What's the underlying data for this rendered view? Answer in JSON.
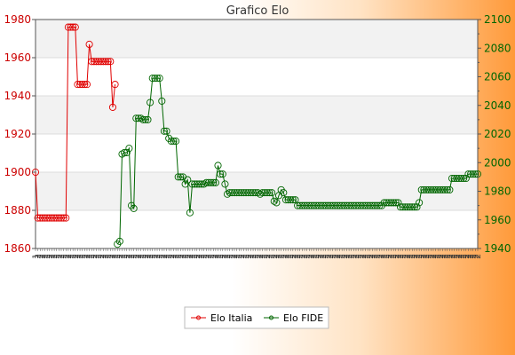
{
  "chart_data": {
    "type": "line",
    "title": "Grafico Elo",
    "colors": {
      "italia": "#e00000",
      "fide": "#006600",
      "left_axis": "#cc0000",
      "right_axis": "#006600",
      "band": "#f2f2f2",
      "grid": "#dcdcdc"
    },
    "y_left": {
      "label": "",
      "lim": [
        1860,
        1980
      ],
      "ticks": [
        1860,
        1880,
        1900,
        1920,
        1940,
        1960,
        1980
      ]
    },
    "y_right": {
      "label": "",
      "lim": [
        1940,
        2100
      ],
      "ticks": [
        1940,
        1960,
        1980,
        2000,
        2020,
        2040,
        2060,
        2080,
        2100
      ]
    },
    "grid": true,
    "legend_position": "bottom",
    "x_tick_labels": [
      "1",
      "2",
      "2",
      "2",
      "2",
      "2",
      "2",
      "2",
      "2",
      "2",
      "2",
      "2",
      "2",
      "2",
      "2",
      "2",
      "2",
      "2",
      "2",
      "2",
      "2",
      "2",
      "2",
      "2",
      "2",
      "2",
      "2",
      "2",
      "2",
      "2",
      "2",
      "2",
      "2",
      "2",
      "2",
      "2",
      "2",
      "2",
      "2",
      "2",
      "2",
      "2",
      "2",
      "2",
      "2",
      "2",
      "2",
      "2",
      "2",
      "2",
      "2",
      "2",
      "2",
      "2",
      "2",
      "2",
      "2",
      "2",
      "2",
      "2",
      "2",
      "2",
      "2",
      "2",
      "2",
      "2",
      "2",
      "2",
      "2",
      "2",
      "2",
      "2",
      "2",
      "2",
      "2",
      "2",
      "2",
      "2",
      "2",
      "2",
      "2",
      "2",
      "2",
      "2",
      "2",
      "2",
      "2",
      "2",
      "2",
      "2",
      "2",
      "2",
      "2",
      "2",
      "2",
      "2",
      "2",
      "2",
      "2",
      "2",
      "2",
      "2",
      "2",
      "2",
      "2",
      "2",
      "2",
      "2",
      "2",
      "2",
      "2",
      "2",
      "2",
      "2",
      "2",
      "2",
      "2",
      "2",
      "2",
      "2",
      "2",
      "2",
      "2",
      "2",
      "2",
      "2",
      "2",
      "2",
      "2",
      "2",
      "2",
      "2",
      "2",
      "2",
      "2",
      "2",
      "2",
      "2",
      "2",
      "2",
      "2",
      "2",
      "2",
      "2",
      "2",
      "2",
      "2",
      "2",
      "2",
      "2",
      "2",
      "2",
      "2",
      "2",
      "2",
      "2",
      "2",
      "2",
      "2",
      "2",
      "2",
      "2",
      "2",
      "2",
      "2",
      "2",
      "2",
      "2",
      "2",
      "2",
      "2",
      "2",
      "2",
      "2",
      "2",
      "2",
      "2",
      "2",
      "2",
      "2",
      "2",
      "2",
      "2",
      "2",
      "2",
      "2",
      "2",
      "2",
      "2",
      "2"
    ],
    "series": [
      {
        "name": "Elo Italia",
        "axis": "left",
        "points": [
          [
            0,
            1900
          ],
          [
            1,
            1876
          ],
          [
            2,
            1876
          ],
          [
            3,
            1876
          ],
          [
            4,
            1876
          ],
          [
            5,
            1876
          ],
          [
            6,
            1876
          ],
          [
            7,
            1876
          ],
          [
            8,
            1876
          ],
          [
            9,
            1876
          ],
          [
            10,
            1876
          ],
          [
            11,
            1876
          ],
          [
            12,
            1876
          ],
          [
            13,
            1876
          ],
          [
            14,
            1976
          ],
          [
            15,
            1976
          ],
          [
            16,
            1976
          ],
          [
            17,
            1976
          ],
          [
            18,
            1946
          ],
          [
            19,
            1946
          ],
          [
            20,
            1946
          ],
          [
            21,
            1946
          ],
          [
            22,
            1946
          ],
          [
            23,
            1967
          ],
          [
            24,
            1958
          ],
          [
            25,
            1958
          ],
          [
            26,
            1958
          ],
          [
            27,
            1958
          ],
          [
            28,
            1958
          ],
          [
            29,
            1958
          ],
          [
            30,
            1958
          ],
          [
            31,
            1958
          ],
          [
            32,
            1958
          ],
          [
            33,
            1934
          ],
          [
            34,
            1946
          ]
        ]
      },
      {
        "name": "Elo FIDE",
        "axis": "right",
        "points": [
          [
            35,
            1943
          ],
          [
            36,
            1945
          ],
          [
            37,
            2006
          ],
          [
            38,
            2007
          ],
          [
            39,
            2007
          ],
          [
            40,
            2010
          ],
          [
            41,
            1970
          ],
          [
            42,
            1968
          ],
          [
            43,
            2031
          ],
          [
            44,
            2031
          ],
          [
            45,
            2031
          ],
          [
            46,
            2030
          ],
          [
            47,
            2030
          ],
          [
            48,
            2030
          ],
          [
            49,
            2042
          ],
          [
            50,
            2059
          ],
          [
            51,
            2059
          ],
          [
            52,
            2059
          ],
          [
            53,
            2059
          ],
          [
            54,
            2043
          ],
          [
            55,
            2022
          ],
          [
            56,
            2022
          ],
          [
            57,
            2017
          ],
          [
            58,
            2015
          ],
          [
            59,
            2015
          ],
          [
            60,
            2015
          ],
          [
            61,
            1990
          ],
          [
            62,
            1990
          ],
          [
            63,
            1990
          ],
          [
            64,
            1985
          ],
          [
            65,
            1988
          ],
          [
            66,
            1965
          ],
          [
            67,
            1985
          ],
          [
            68,
            1985
          ],
          [
            69,
            1985
          ],
          [
            70,
            1985
          ],
          [
            71,
            1985
          ],
          [
            72,
            1985
          ],
          [
            73,
            1986
          ],
          [
            74,
            1986
          ],
          [
            75,
            1986
          ],
          [
            76,
            1986
          ],
          [
            77,
            1986
          ],
          [
            78,
            1998
          ],
          [
            79,
            1992
          ],
          [
            80,
            1992
          ],
          [
            81,
            1985
          ],
          [
            82,
            1978
          ],
          [
            83,
            1979
          ],
          [
            84,
            1979
          ],
          [
            85,
            1979
          ],
          [
            86,
            1979
          ],
          [
            87,
            1979
          ],
          [
            88,
            1979
          ],
          [
            89,
            1979
          ],
          [
            90,
            1979
          ],
          [
            91,
            1979
          ],
          [
            92,
            1979
          ],
          [
            93,
            1979
          ],
          [
            94,
            1979
          ],
          [
            95,
            1979
          ],
          [
            96,
            1978
          ],
          [
            97,
            1979
          ],
          [
            98,
            1979
          ],
          [
            99,
            1979
          ],
          [
            100,
            1979
          ],
          [
            101,
            1979
          ],
          [
            102,
            1973
          ],
          [
            103,
            1972
          ],
          [
            104,
            1977
          ],
          [
            105,
            1981
          ],
          [
            106,
            1979
          ],
          [
            107,
            1974
          ],
          [
            108,
            1974
          ],
          [
            109,
            1974
          ],
          [
            110,
            1974
          ],
          [
            111,
            1974
          ],
          [
            112,
            1970
          ],
          [
            113,
            1970
          ],
          [
            114,
            1970
          ],
          [
            115,
            1970
          ],
          [
            116,
            1970
          ],
          [
            117,
            1970
          ],
          [
            118,
            1970
          ],
          [
            119,
            1970
          ],
          [
            120,
            1970
          ],
          [
            121,
            1970
          ],
          [
            122,
            1970
          ],
          [
            123,
            1970
          ],
          [
            124,
            1970
          ],
          [
            125,
            1970
          ],
          [
            126,
            1970
          ],
          [
            127,
            1970
          ],
          [
            128,
            1970
          ],
          [
            129,
            1970
          ],
          [
            130,
            1970
          ],
          [
            131,
            1970
          ],
          [
            132,
            1970
          ],
          [
            133,
            1970
          ],
          [
            134,
            1970
          ],
          [
            135,
            1970
          ],
          [
            136,
            1970
          ],
          [
            137,
            1970
          ],
          [
            138,
            1970
          ],
          [
            139,
            1970
          ],
          [
            140,
            1970
          ],
          [
            141,
            1970
          ],
          [
            142,
            1970
          ],
          [
            143,
            1970
          ],
          [
            144,
            1970
          ],
          [
            145,
            1970
          ],
          [
            146,
            1970
          ],
          [
            147,
            1970
          ],
          [
            148,
            1970
          ],
          [
            149,
            1972
          ],
          [
            150,
            1972
          ],
          [
            151,
            1972
          ],
          [
            152,
            1972
          ],
          [
            153,
            1972
          ],
          [
            154,
            1972
          ],
          [
            155,
            1972
          ],
          [
            156,
            1969
          ],
          [
            157,
            1969
          ],
          [
            158,
            1969
          ],
          [
            159,
            1969
          ],
          [
            160,
            1969
          ],
          [
            161,
            1969
          ],
          [
            162,
            1969
          ],
          [
            163,
            1969
          ],
          [
            164,
            1972
          ],
          [
            165,
            1981
          ],
          [
            166,
            1981
          ],
          [
            167,
            1981
          ],
          [
            168,
            1981
          ],
          [
            169,
            1981
          ],
          [
            170,
            1981
          ],
          [
            171,
            1981
          ],
          [
            172,
            1981
          ],
          [
            173,
            1981
          ],
          [
            174,
            1981
          ],
          [
            175,
            1981
          ],
          [
            176,
            1981
          ],
          [
            177,
            1981
          ],
          [
            178,
            1989
          ],
          [
            179,
            1989
          ],
          [
            180,
            1989
          ],
          [
            181,
            1989
          ],
          [
            182,
            1989
          ],
          [
            183,
            1989
          ],
          [
            184,
            1989
          ],
          [
            185,
            1992
          ],
          [
            186,
            1992
          ],
          [
            187,
            1992
          ],
          [
            188,
            1992
          ],
          [
            189,
            1992
          ]
        ]
      }
    ]
  }
}
